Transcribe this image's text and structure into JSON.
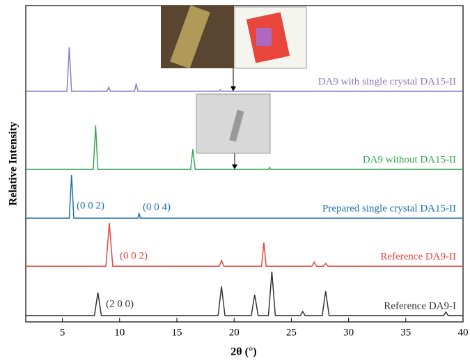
{
  "chart_data": {
    "type": "line",
    "xlabel": "2θ (°)",
    "ylabel": "Relative Intensity",
    "xlim": [
      1.8,
      40
    ],
    "xticks": [
      5,
      10,
      15,
      20,
      25,
      30,
      35,
      40
    ],
    "ylim": [
      0,
      100
    ],
    "series": [
      {
        "name": "DA9 with single crystal DA15-II",
        "color": "#8e7cc3",
        "x": [
          1.8,
          5.4,
          5.6,
          5.8,
          8.9,
          9.05,
          9.2,
          11.3,
          11.45,
          11.6,
          18.7,
          18.8,
          18.9,
          40
        ],
        "values": [
          72.9,
          72.9,
          86.8,
          72.9,
          72.9,
          74.2,
          72.9,
          72.9,
          75.3,
          72.9,
          72.9,
          73.4,
          72.9,
          72.9
        ]
      },
      {
        "name": "DA9 without DA15-II",
        "color": "#3aa655",
        "x": [
          1.8,
          7.7,
          7.9,
          8.1,
          16.2,
          16.4,
          16.6,
          23.0,
          23.1,
          23.2,
          40
        ],
        "values": [
          48.2,
          48.2,
          62.1,
          48.2,
          48.2,
          54.6,
          48.2,
          48.2,
          48.9,
          48.2,
          48.2
        ]
      },
      {
        "name": "Prepared single crystal DA15-II",
        "color": "#1f6fb5",
        "x": [
          1.8,
          5.6,
          5.8,
          6.0,
          11.6,
          11.7,
          11.8,
          40
        ],
        "values": [
          32.8,
          32.8,
          46.5,
          32.8,
          32.8,
          34.4,
          32.8,
          32.8
        ]
      },
      {
        "name": "Reference DA9-II",
        "color": "#e8453c",
        "x": [
          1.8,
          8.8,
          9.1,
          9.4,
          18.7,
          18.9,
          19.1,
          22.4,
          22.6,
          22.8,
          26.8,
          27.0,
          27.2,
          27.8,
          28.0,
          28.2,
          40
        ],
        "values": [
          17.6,
          17.6,
          31.3,
          17.6,
          17.6,
          19.4,
          17.6,
          17.6,
          25.1,
          17.6,
          17.6,
          18.9,
          17.6,
          17.6,
          18.5,
          17.6,
          17.6
        ]
      },
      {
        "name": "Reference DA9-I",
        "color": "#333333",
        "x": [
          1.8,
          7.8,
          8.1,
          8.4,
          18.6,
          18.9,
          19.2,
          21.5,
          21.8,
          22.1,
          23.0,
          23.3,
          23.6,
          25.8,
          26.0,
          26.2,
          27.7,
          28.0,
          28.3,
          38.3,
          38.5,
          38.7,
          40
        ],
        "values": [
          2.0,
          2.0,
          9.3,
          2.0,
          2.0,
          11.2,
          2.0,
          2.0,
          8.6,
          2.0,
          2.0,
          15.9,
          2.0,
          2.0,
          3.3,
          2.0,
          2.0,
          9.7,
          2.0,
          2.0,
          3.1,
          2.0,
          2.0
        ]
      }
    ],
    "annotations": [
      {
        "text": "(0 0 2)",
        "color": "#1f6fb5"
      },
      {
        "text": "(0 0 4)",
        "color": "#1f6fb5"
      },
      {
        "text": "(0 0 2)",
        "color": "#e8453c"
      },
      {
        "text": "(2 0 0)",
        "color": "#333333"
      }
    ]
  }
}
